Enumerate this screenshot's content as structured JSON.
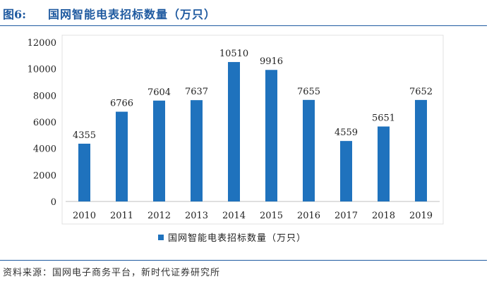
{
  "header": {
    "figure_label": "图6:",
    "figure_title": "国网智能电表招标数量（万只）"
  },
  "source": {
    "label": "资料来源：",
    "text": "国网电子商务平台，新时代证券研究所"
  },
  "colors": {
    "bar": "#1f72bd",
    "accent": "#1f5aa0",
    "axis": "#bfbfbf"
  },
  "chart_data": {
    "type": "bar",
    "title": "",
    "xlabel": "",
    "ylabel": "",
    "categories": [
      "2010",
      "2011",
      "2012",
      "2013",
      "2014",
      "2015",
      "2016",
      "2017",
      "2018",
      "2019"
    ],
    "series": [
      {
        "name": "国网智能电表招标数量（万只）",
        "values": [
          4355,
          6766,
          7604,
          7637,
          10510,
          9916,
          7655,
          4559,
          5651,
          7652
        ]
      }
    ],
    "data_labels": [
      "4355",
      "6766",
      "7604",
      "7637",
      "10510",
      "9916",
      "7655",
      "4559",
      "5651",
      "7652"
    ],
    "ylim": [
      0,
      12000
    ],
    "yticks": [
      "0",
      "2000",
      "4000",
      "6000",
      "8000",
      "10000",
      "12000"
    ],
    "ytick_values": [
      0,
      2000,
      4000,
      6000,
      8000,
      10000,
      12000
    ],
    "grid": false,
    "legend": "bottom-center"
  }
}
